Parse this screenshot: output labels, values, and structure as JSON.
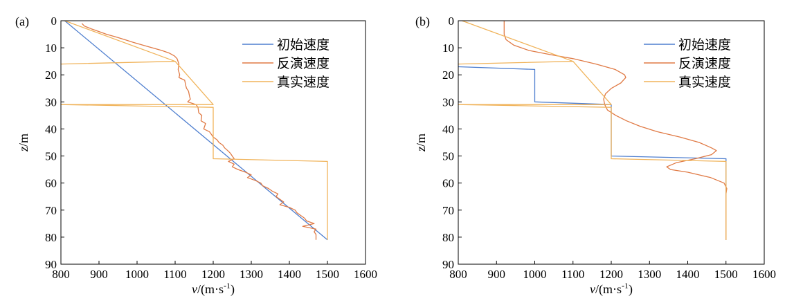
{
  "colors": {
    "initial": "#4f7fcf",
    "inverted": "#e07a45",
    "true": "#f0b35a"
  },
  "chart_data": [
    {
      "type": "line",
      "panel_label": "(a)",
      "xlabel_italic": "v",
      "xlabel_rest": "/(m·s",
      "xlabel_sup": "-1",
      "xlabel_close": ")",
      "ylabel_italic": "z",
      "ylabel_rest": "/m",
      "xlim": [
        800,
        1600
      ],
      "ylim": [
        0,
        90
      ],
      "y_inverted": true,
      "x_ticks": [
        "800",
        "900",
        "1000",
        "1100",
        "1200",
        "1300",
        "1400",
        "1500",
        "1600"
      ],
      "y_ticks": [
        "0",
        "10",
        "20",
        "30",
        "40",
        "50",
        "60",
        "70",
        "80",
        "90"
      ],
      "legend_position": "top-right",
      "series": [
        {
          "name": "初始速度",
          "color_key": "initial",
          "points": [
            [
              810,
              0
            ],
            [
              1500,
              81
            ]
          ]
        },
        {
          "name": "反演速度",
          "color_key": "inverted",
          "points": [
            [
              855,
              1
            ],
            [
              862,
              2
            ],
            [
              880,
              3
            ],
            [
              900,
              4
            ],
            [
              920,
              5
            ],
            [
              945,
              6
            ],
            [
              968,
              7
            ],
            [
              990,
              8
            ],
            [
              1015,
              9
            ],
            [
              1040,
              10
            ],
            [
              1065,
              11
            ],
            [
              1085,
              12
            ],
            [
              1098,
              13
            ],
            [
              1105,
              14
            ],
            [
              1110,
              16
            ],
            [
              1108,
              18
            ],
            [
              1112,
              20
            ],
            [
              1110,
              21
            ],
            [
              1125,
              22
            ],
            [
              1128,
              24
            ],
            [
              1130,
              25
            ],
            [
              1135,
              26
            ],
            [
              1138,
              28
            ],
            [
              1140,
              29
            ],
            [
              1133,
              30
            ],
            [
              1155,
              31
            ],
            [
              1160,
              32
            ],
            [
              1162,
              34
            ],
            [
              1170,
              35
            ],
            [
              1168,
              37
            ],
            [
              1180,
              38
            ],
            [
              1175,
              40
            ],
            [
              1190,
              41
            ],
            [
              1195,
              42
            ],
            [
              1200,
              43
            ],
            [
              1210,
              44
            ],
            [
              1215,
              45
            ],
            [
              1225,
              46
            ],
            [
              1230,
              47
            ],
            [
              1238,
              48
            ],
            [
              1245,
              49
            ],
            [
              1250,
              50
            ],
            [
              1255,
              51
            ],
            [
              1240,
              52
            ],
            [
              1255,
              53
            ],
            [
              1250,
              54
            ],
            [
              1265,
              55
            ],
            [
              1285,
              56
            ],
            [
              1300,
              57
            ],
            [
              1290,
              58
            ],
            [
              1310,
              59
            ],
            [
              1325,
              60
            ],
            [
              1330,
              61
            ],
            [
              1345,
              62
            ],
            [
              1355,
              63
            ],
            [
              1370,
              64
            ],
            [
              1365,
              65
            ],
            [
              1375,
              66
            ],
            [
              1385,
              67
            ],
            [
              1375,
              68
            ],
            [
              1400,
              69
            ],
            [
              1415,
              70
            ],
            [
              1420,
              71
            ],
            [
              1430,
              72
            ],
            [
              1440,
              73
            ],
            [
              1445,
              74
            ],
            [
              1465,
              75
            ],
            [
              1435,
              76
            ],
            [
              1470,
              77
            ],
            [
              1465,
              78
            ],
            [
              1470,
              79
            ],
            [
              1470,
              81
            ]
          ]
        },
        {
          "name": "真实速度",
          "color_key": "true",
          "points": [
            [
              810,
              0
            ],
            [
              1100,
              15
            ],
            [
              800,
              16
            ],
            [
              1100,
              15
            ],
            [
              1200,
              31
            ],
            [
              800,
              31
            ],
            [
              1200,
              32
            ],
            [
              1200,
              51
            ],
            [
              1500,
              52
            ],
            [
              1500,
              81
            ]
          ]
        }
      ]
    },
    {
      "type": "line",
      "panel_label": "(b)",
      "xlabel_italic": "v",
      "xlabel_rest": "/(m·s",
      "xlabel_sup": "-1",
      "xlabel_close": ")",
      "ylabel_italic": "z",
      "ylabel_rest": "/m",
      "xlim": [
        800,
        1600
      ],
      "ylim": [
        0,
        90
      ],
      "y_inverted": true,
      "x_ticks": [
        "800",
        "900",
        "1000",
        "1100",
        "1200",
        "1300",
        "1400",
        "1500",
        "1600"
      ],
      "y_ticks": [
        "0",
        "10",
        "20",
        "30",
        "40",
        "50",
        "60",
        "70",
        "80",
        "90"
      ],
      "legend_position": "top-right",
      "series": [
        {
          "name": "初始速度",
          "color_key": "initial",
          "points": [
            [
              800,
              17
            ],
            [
              1000,
              18
            ],
            [
              1000,
              30
            ],
            [
              1200,
              31
            ],
            [
              1200,
              50
            ],
            [
              1500,
              51
            ],
            [
              1500,
              81
            ]
          ]
        },
        {
          "name": "反演速度",
          "color_key": "inverted",
          "points": [
            [
              920,
              0
            ],
            [
              920,
              5
            ],
            [
              925,
              7
            ],
            [
              945,
              9
            ],
            [
              985,
              11
            ],
            [
              1040,
              12.5
            ],
            [
              1100,
              14
            ],
            [
              1160,
              16
            ],
            [
              1210,
              18
            ],
            [
              1235,
              20
            ],
            [
              1238,
              21
            ],
            [
              1225,
              23
            ],
            [
              1200,
              25
            ],
            [
              1185,
              27
            ],
            [
              1180,
              29
            ],
            [
              1183,
              31
            ],
            [
              1190,
              33
            ],
            [
              1212,
              35
            ],
            [
              1240,
              37
            ],
            [
              1275,
              39
            ],
            [
              1320,
              41
            ],
            [
              1380,
              43
            ],
            [
              1430,
              45
            ],
            [
              1462,
              47
            ],
            [
              1475,
              48
            ],
            [
              1462,
              49.5
            ],
            [
              1420,
              51
            ],
            [
              1370,
              52.5
            ],
            [
              1345,
              54
            ],
            [
              1355,
              55
            ],
            [
              1400,
              56
            ],
            [
              1460,
              58
            ],
            [
              1495,
              60
            ],
            [
              1502,
              62
            ],
            [
              1500,
              64
            ],
            [
              1500,
              81
            ]
          ]
        },
        {
          "name": "真实速度",
          "color_key": "true",
          "points": [
            [
              810,
              0
            ],
            [
              1100,
              15
            ],
            [
              800,
              16
            ],
            [
              1100,
              15
            ],
            [
              1200,
              31
            ],
            [
              800,
              31
            ],
            [
              1200,
              32
            ],
            [
              1200,
              51
            ],
            [
              1500,
              52
            ],
            [
              1500,
              81
            ]
          ]
        }
      ]
    }
  ]
}
